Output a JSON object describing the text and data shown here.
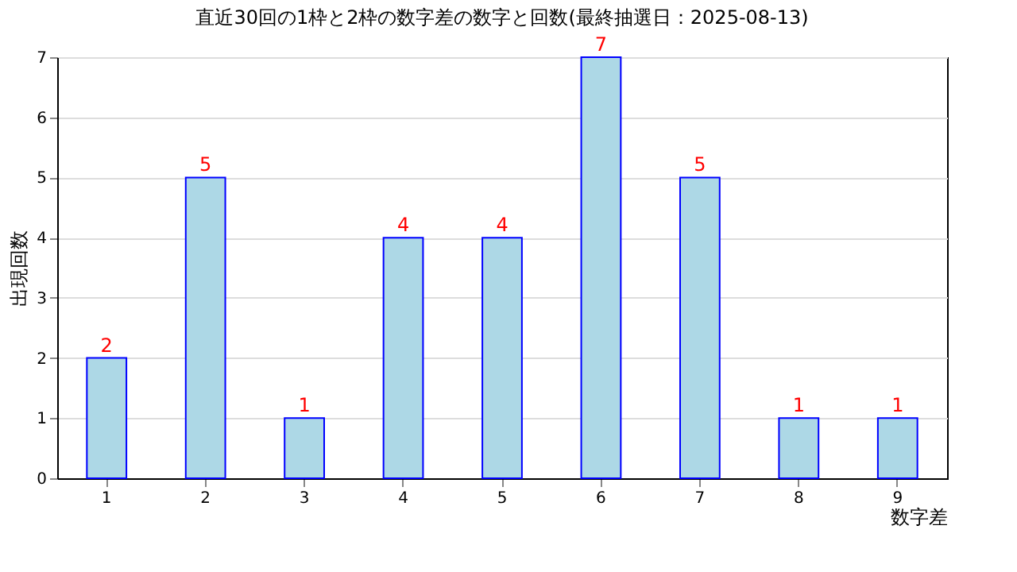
{
  "chart_data": {
    "type": "bar",
    "title": "直近30回の1枠と2枠の数字差の数字と回数(最終抽選日：2025-08-13)",
    "xlabel": "数字差",
    "ylabel": "出現回数",
    "categories": [
      "1",
      "2",
      "3",
      "4",
      "5",
      "6",
      "7",
      "8",
      "9"
    ],
    "values": [
      2,
      5,
      1,
      4,
      4,
      7,
      5,
      1,
      1
    ],
    "color": "#add8e6",
    "ylim": [
      0,
      7
    ],
    "yticks": [
      0,
      1,
      2,
      3,
      4,
      5,
      6,
      7
    ],
    "grid": "y",
    "data_labels": true
  }
}
